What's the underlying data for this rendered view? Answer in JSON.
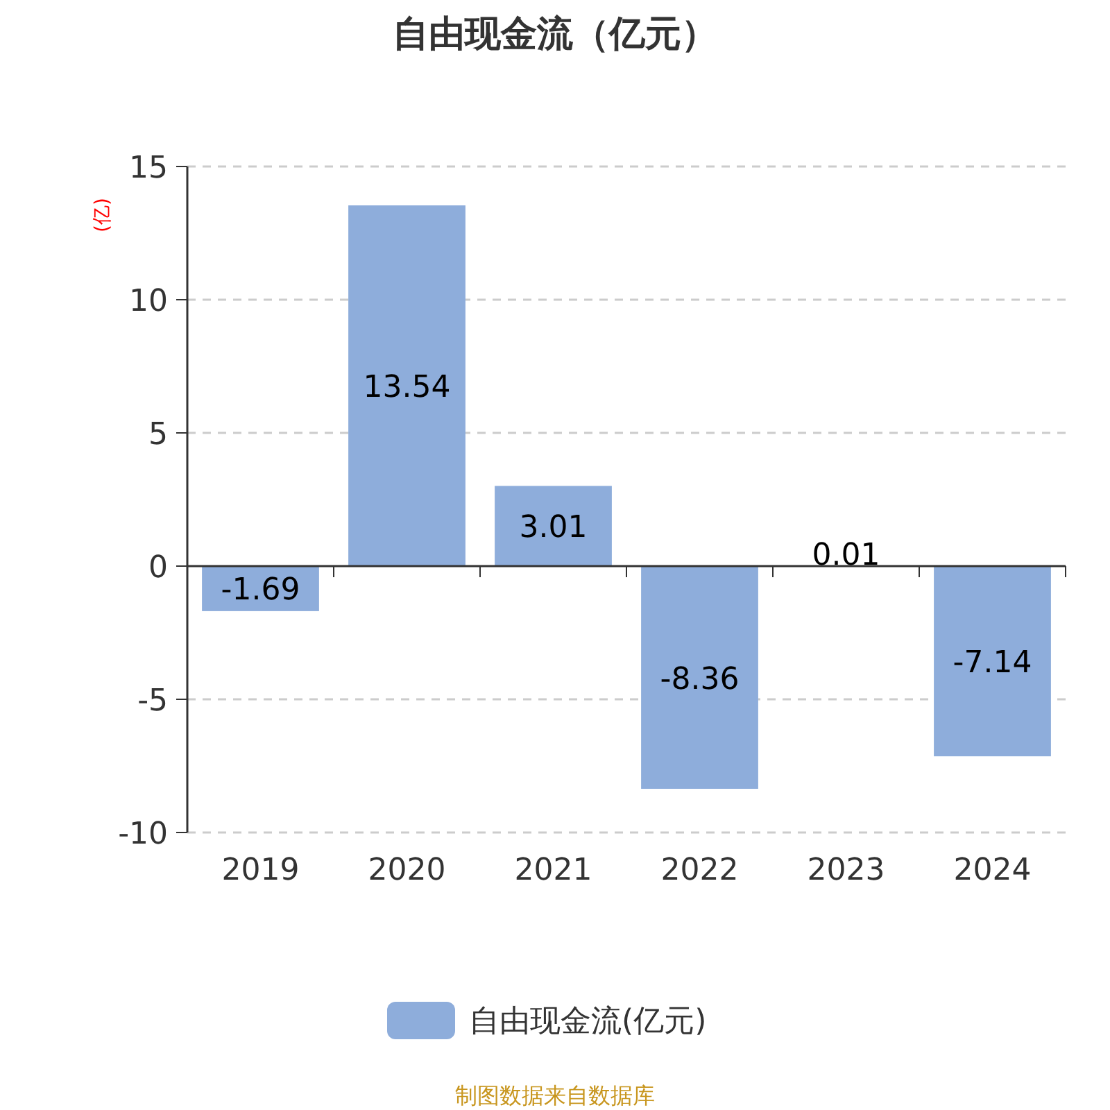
{
  "chart_data": {
    "type": "bar",
    "title": "自由现金流（亿元）",
    "ylabel": "(亿)",
    "categories": [
      "2019",
      "2020",
      "2021",
      "2022",
      "2023",
      "2024"
    ],
    "series": [
      {
        "name": "自由现金流(亿元)",
        "color": "#8eaddb",
        "values": [
          -1.69,
          13.54,
          3.01,
          -8.36,
          0.01,
          -7.14
        ]
      }
    ],
    "ylim": [
      -10,
      15
    ],
    "yticks": [
      -10,
      -5,
      0,
      5,
      10,
      15
    ],
    "grid": "y",
    "legend": "bottom",
    "data_labels": true,
    "annotations": [
      "制图数据来自数据库"
    ]
  }
}
